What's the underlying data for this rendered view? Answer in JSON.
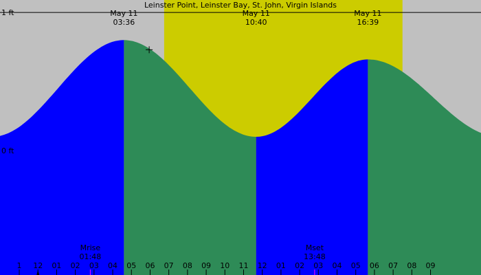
{
  "chart_data": {
    "type": "area",
    "title": "Leinster Point, Leinster Bay, St. John, Virgin Islands",
    "x_unit": "hour of day",
    "x_range": [
      -3.03,
      22.7
    ],
    "y_unit": "ft",
    "y_range": [
      -0.9,
      1.09
    ],
    "y_ticks": [
      {
        "value": 1,
        "label": "1 ft"
      },
      {
        "value": 0,
        "label": "0 ft"
      }
    ],
    "x_tick_labels": [
      "1",
      "12",
      "01",
      "02",
      "03",
      "04",
      "05",
      "06",
      "07",
      "08",
      "09",
      "10",
      "11",
      "12",
      "01",
      "02",
      "03",
      "04",
      "05",
      "06",
      "07",
      "08",
      "09"
    ],
    "x_tick_hours": [
      -2,
      -1,
      0,
      1,
      2,
      3,
      4,
      5,
      6,
      7,
      8,
      9,
      10,
      11,
      12,
      13,
      14,
      15,
      16,
      17,
      18,
      19,
      20
    ],
    "daylight": {
      "start_hour": 5.75,
      "end hour": 18.5
    },
    "tide_extremes": [
      {
        "hour": 3.6,
        "height_ft": 0.8,
        "type": "high"
      },
      {
        "hour": 10.67,
        "height_ft": 0.1,
        "type": "low"
      },
      {
        "hour": 16.65,
        "height_ft": 0.66,
        "type": "high"
      }
    ],
    "tide_curve_edges": {
      "start": {
        "hour": -3.03,
        "height_ft": 0.44
      },
      "end": {
        "hour": 22.7,
        "height_ft": 0.36
      }
    },
    "falling_periods": [
      [
        3.6,
        10.67
      ],
      [
        16.65,
        22.7
      ]
    ],
    "event_labels": [
      {
        "date": "May 11",
        "time": "03:36",
        "hour": 3.6
      },
      {
        "date": "May 11",
        "time": "10:40",
        "hour": 10.67
      },
      {
        "date": "May 11",
        "time": "16:39",
        "hour": 16.65
      }
    ],
    "moon_events": [
      {
        "label": "Mrise",
        "time": "01:48",
        "hour": 1.8
      },
      {
        "label": "Mset",
        "time": "13:48",
        "hour": 13.8
      }
    ],
    "now_marker_hour": -1,
    "cursor_marker": {
      "hour": 4.95,
      "height_ft": 0.73
    },
    "colors": {
      "night": "#c0c0c0",
      "day": "#cccc00",
      "rising": "#0000ff",
      "falling": "#2e8b57",
      "moon_mark": "#ff00ff"
    }
  }
}
